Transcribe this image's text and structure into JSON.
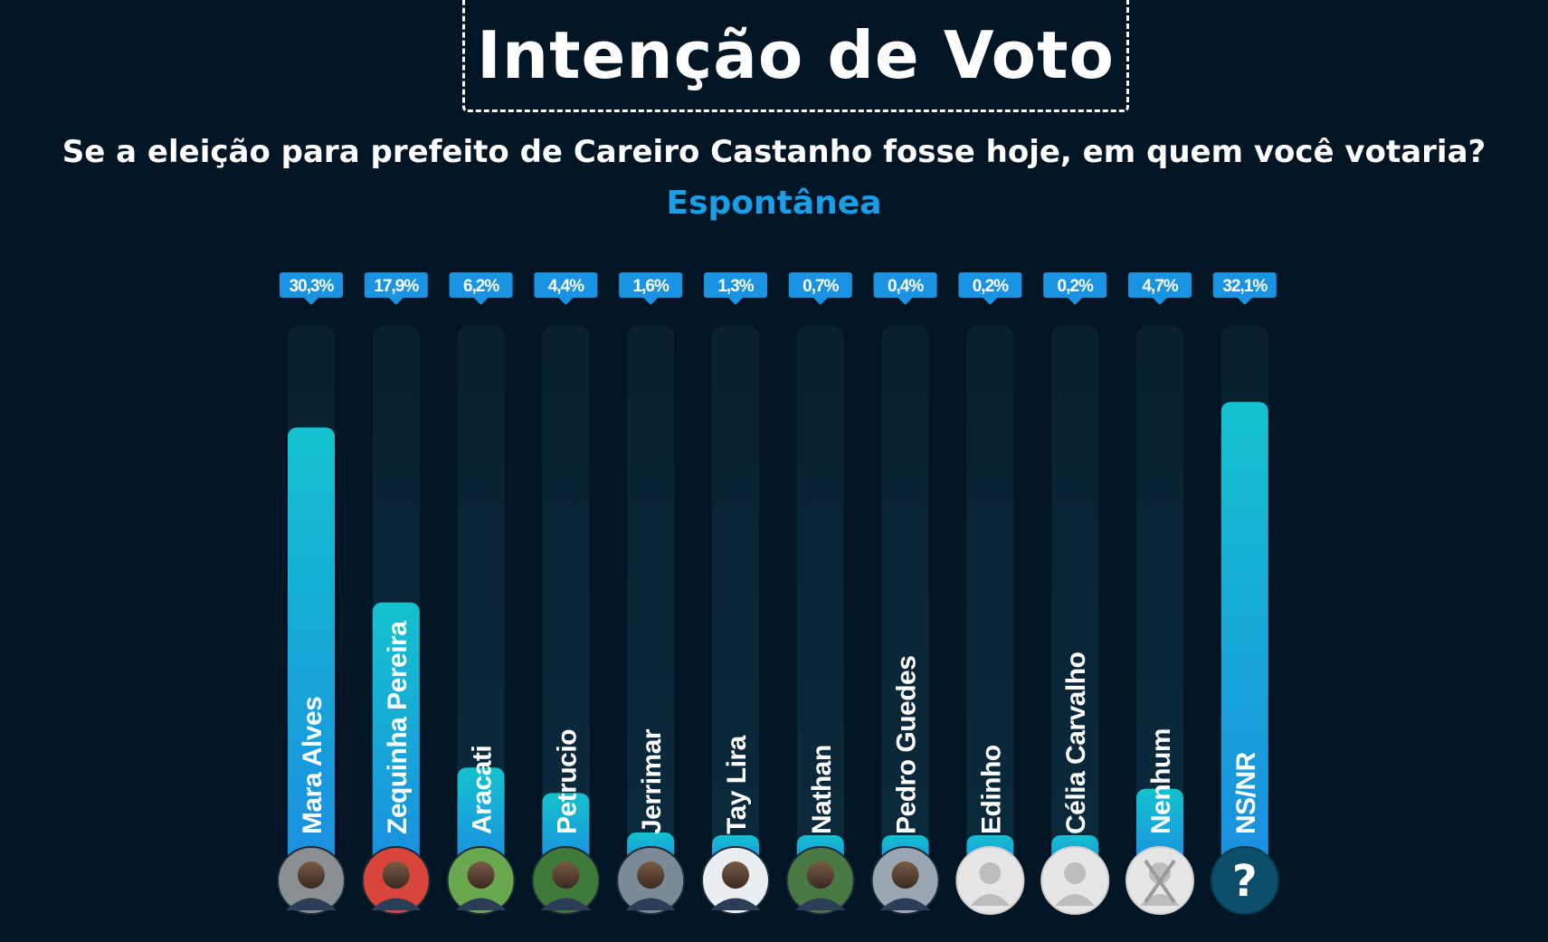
{
  "header": {
    "title": "Intenção de Voto",
    "subtitle": "Se a eleição para prefeito de Careiro Castanho fosse hoje, em quem você votaria?",
    "tag": "Espontânea"
  },
  "colors": {
    "background": "#021524",
    "track": "#0b2a3c",
    "bar_top": "#14c2cf",
    "bar_bottom": "#1a8fe0",
    "label_bg": "#1b93e3",
    "tag": "#1c9ee6"
  },
  "chart_data": {
    "type": "bar",
    "orientation": "vertical",
    "categories": [
      "Mara Alves",
      "Zequinha Pereira",
      "Aracati",
      "Petrucio",
      "Jerrimar",
      "Tay Lira",
      "Nathan",
      "Pedro Guedes",
      "Edinho",
      "Célia Carvalho",
      "Nenhum",
      "NS/NR"
    ],
    "values": [
      30.3,
      17.9,
      6.2,
      4.4,
      1.6,
      1.3,
      0.7,
      0.4,
      0.2,
      0.2,
      4.7,
      32.1
    ],
    "value_labels": [
      "30,3%",
      "17,9%",
      "6,2%",
      "4,4%",
      "1,6%",
      "1,3%",
      "0,7%",
      "0,4%",
      "0,2%",
      "0,2%",
      "4,7%",
      "32,1%"
    ],
    "avatars": [
      "photo",
      "photo",
      "photo",
      "photo",
      "photo",
      "photo",
      "photo",
      "photo",
      "placeholder",
      "placeholder",
      "none",
      "question"
    ],
    "title": "Intenção de Voto",
    "grid": false,
    "legend": "none"
  }
}
